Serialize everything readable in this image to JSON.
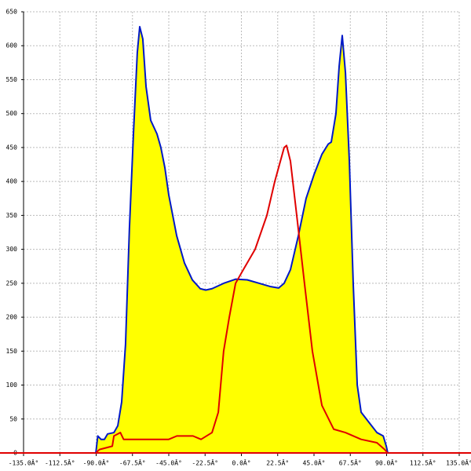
{
  "chart_data": {
    "type": "line",
    "xlim": [
      -135,
      135
    ],
    "ylim": [
      0,
      650
    ],
    "xticks": [
      {
        "value": -135,
        "label": "-135.0Â°"
      },
      {
        "value": -112.5,
        "label": "-112.5Â°"
      },
      {
        "value": -90,
        "label": "-90.0Â°"
      },
      {
        "value": -67.5,
        "label": "-67.5Â°"
      },
      {
        "value": -45,
        "label": "-45.0Â°"
      },
      {
        "value": -22.5,
        "label": "-22.5Â°"
      },
      {
        "value": 0,
        "label": "0.0Â°"
      },
      {
        "value": 22.5,
        "label": "22.5Â°"
      },
      {
        "value": 45,
        "label": "45.0Â°"
      },
      {
        "value": 67.5,
        "label": "67.5Â°"
      },
      {
        "value": 90,
        "label": "90.0Â°"
      },
      {
        "value": 112.5,
        "label": "112.5Â°"
      },
      {
        "value": 135,
        "label": "135.0Â°"
      }
    ],
    "yticks": [
      0,
      50,
      100,
      150,
      200,
      250,
      300,
      350,
      400,
      450,
      500,
      550,
      600,
      650
    ],
    "grid": true,
    "series": [
      {
        "color": "#0018c8",
        "fill": "#ffff00",
        "x": [
          -90.2,
          -89,
          -87,
          -84.9,
          -82.9,
          -79,
          -76.6,
          -74.2,
          -71.8,
          -69.4,
          -66.9,
          -64.5,
          -63,
          -61.1,
          -59.1,
          -56.2,
          -52.3,
          -49.9,
          -47.4,
          -45,
          -40.1,
          -35.3,
          -30.4,
          -25.5,
          -22.1,
          -18.2,
          -10.9,
          -3.6,
          3.6,
          10.9,
          18.2,
          23.1,
          26.5,
          30.4,
          35.3,
          40.1,
          45,
          49.9,
          53.8,
          55.7,
          58.6,
          60.6,
          62.5,
          64.5,
          66.9,
          69.3,
          71.8,
          74.2,
          79.1,
          84,
          87.9,
          89.8,
          90.7
        ],
        "values": [
          0,
          25,
          20,
          20,
          28,
          30,
          40,
          75,
          160,
          330,
          470,
          590,
          628,
          610,
          540,
          490,
          470,
          450,
          420,
          380,
          320,
          280,
          255,
          242,
          240,
          242,
          250,
          256,
          255,
          250,
          245,
          243,
          250,
          270,
          320,
          375,
          410,
          440,
          455,
          458,
          500,
          570,
          615,
          560,
          430,
          250,
          100,
          60,
          45,
          30,
          25,
          10,
          0
        ]
      },
      {
        "color": "#e00000",
        "x": [
          -90.2,
          -88,
          -80,
          -79,
          -75,
          -73,
          -60,
          -45,
          -40,
          -30,
          -25,
          -18.2,
          -14.3,
          -11,
          -7.5,
          -3.6,
          1.2,
          8.5,
          15.8,
          20.7,
          26.5,
          28,
          30.4,
          34.3,
          39.1,
          44,
          49.9,
          57.2,
          64.5,
          74.2,
          84,
          88.8,
          90.7
        ],
        "values": [
          0,
          5,
          10,
          25,
          30,
          20,
          20,
          20,
          25,
          25,
          20,
          30,
          60,
          150,
          200,
          250,
          270,
          300,
          350,
          400,
          450,
          453,
          430,
          350,
          250,
          150,
          70,
          35,
          30,
          20,
          15,
          5,
          0
        ]
      }
    ]
  }
}
